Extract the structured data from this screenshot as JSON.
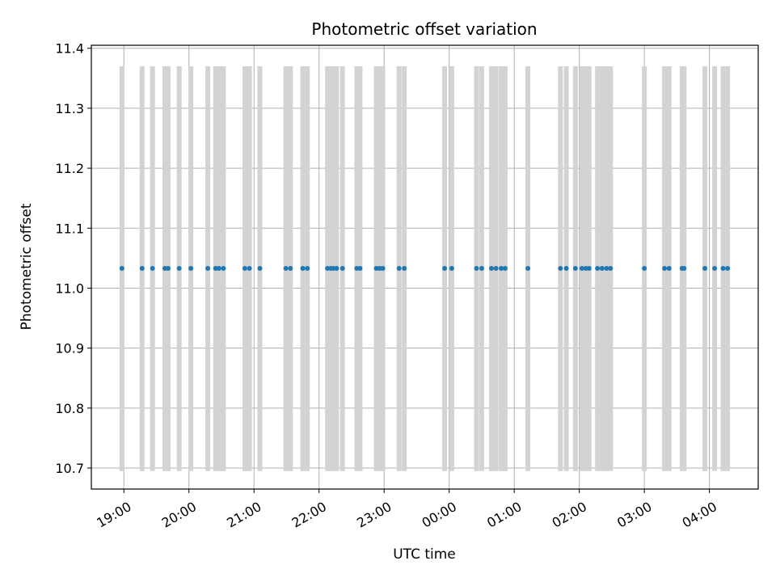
{
  "chart_data": {
    "type": "scatter",
    "title": "Photometric offset variation",
    "xlabel": "UTC time",
    "ylabel": "Photometric offset",
    "x_unit": "hours after 19:00 UTC",
    "xlim": [
      -0.5,
      9.75
    ],
    "ylim": [
      10.665,
      11.405
    ],
    "x_ticks": [
      0,
      1,
      2,
      3,
      4,
      5,
      6,
      7,
      8,
      9
    ],
    "x_tick_labels": [
      "19:00",
      "20:00",
      "21:00",
      "22:00",
      "23:00",
      "00:00",
      "01:00",
      "02:00",
      "03:00",
      "04:00"
    ],
    "y_ticks": [
      10.7,
      10.8,
      10.9,
      11.0,
      11.1,
      11.2,
      11.3,
      11.4
    ],
    "y_tick_labels": [
      "10.7",
      "10.8",
      "10.9",
      "11.0",
      "11.1",
      "11.2",
      "11.3",
      "11.4"
    ],
    "grid": true,
    "point_color": "#1f77b4",
    "errorbar_color": "#d3d3d3",
    "errorbar_range": [
      10.695,
      11.37
    ],
    "x": [
      -0.03,
      0.28,
      0.44,
      0.63,
      0.68,
      0.85,
      1.03,
      1.29,
      1.41,
      1.46,
      1.53,
      1.86,
      1.93,
      2.09,
      2.49,
      2.56,
      2.75,
      2.82,
      3.13,
      3.18,
      3.22,
      3.27,
      3.36,
      3.58,
      3.63,
      3.88,
      3.93,
      3.98,
      4.23,
      4.31,
      4.93,
      5.04,
      5.42,
      5.5,
      5.65,
      5.72,
      5.8,
      5.86,
      6.21,
      6.71,
      6.8,
      6.94,
      7.04,
      7.1,
      7.15,
      7.28,
      7.35,
      7.42,
      7.48,
      8.0,
      8.31,
      8.38,
      8.58,
      8.61,
      8.93,
      9.08,
      9.21,
      9.28
    ],
    "y": [
      11.033,
      11.033,
      11.033,
      11.033,
      11.033,
      11.033,
      11.033,
      11.033,
      11.033,
      11.033,
      11.033,
      11.033,
      11.033,
      11.033,
      11.033,
      11.033,
      11.033,
      11.033,
      11.033,
      11.033,
      11.033,
      11.033,
      11.033,
      11.033,
      11.033,
      11.033,
      11.033,
      11.033,
      11.033,
      11.033,
      11.033,
      11.033,
      11.033,
      11.033,
      11.033,
      11.033,
      11.033,
      11.033,
      11.033,
      11.033,
      11.033,
      11.033,
      11.033,
      11.033,
      11.033,
      11.033,
      11.033,
      11.033,
      11.033,
      11.033,
      11.033,
      11.033,
      11.033,
      11.033,
      11.033,
      11.033,
      11.033,
      11.033
    ]
  }
}
